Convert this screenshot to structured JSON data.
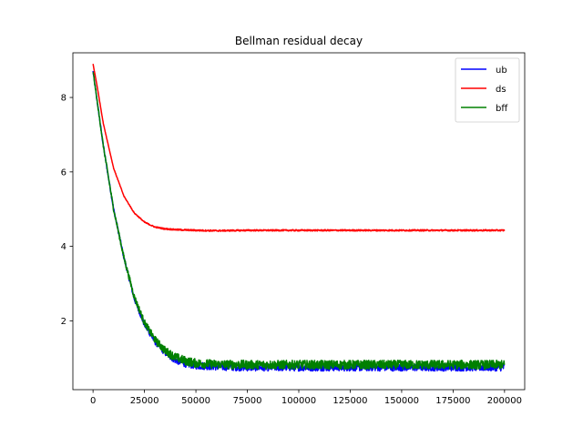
{
  "chart_data": {
    "type": "line",
    "title": "Bellman residual decay",
    "xlabel": "",
    "ylabel": "",
    "xlim": [
      -9800,
      209800
    ],
    "ylim": [
      0.15,
      9.2
    ],
    "x_ticks": [
      0,
      25000,
      50000,
      75000,
      100000,
      125000,
      150000,
      175000,
      200000
    ],
    "x_tick_labels": [
      "0",
      "25000",
      "50000",
      "75000",
      "100000",
      "125000",
      "150000",
      "175000",
      "200000"
    ],
    "y_ticks": [
      2,
      4,
      6,
      8
    ],
    "y_tick_labels": [
      "2",
      "4",
      "6",
      "8"
    ],
    "grid": false,
    "legend_position": "top-right",
    "series": [
      {
        "name": "ub",
        "color": "#0000ff",
        "noise": 0.1,
        "x": [
          0,
          2000,
          5000,
          10000,
          15000,
          20000,
          25000,
          30000,
          35000,
          40000,
          45000,
          50000,
          60000,
          75000,
          100000,
          125000,
          150000,
          175000,
          200000
        ],
        "values": [
          8.7,
          7.9,
          6.7,
          5.0,
          3.7,
          2.6,
          1.9,
          1.45,
          1.15,
          0.95,
          0.85,
          0.8,
          0.77,
          0.75,
          0.75,
          0.75,
          0.75,
          0.75,
          0.75
        ]
      },
      {
        "name": "ds",
        "color": "#ff0000",
        "noise": 0.02,
        "x": [
          0,
          2000,
          5000,
          10000,
          15000,
          20000,
          25000,
          30000,
          35000,
          40000,
          50000,
          60000,
          75000,
          100000,
          125000,
          150000,
          175000,
          200000
        ],
        "values": [
          8.9,
          8.3,
          7.3,
          6.1,
          5.35,
          4.9,
          4.65,
          4.52,
          4.47,
          4.45,
          4.43,
          4.42,
          4.43,
          4.43,
          4.43,
          4.43,
          4.43,
          4.43
        ]
      },
      {
        "name": "bff",
        "color": "#008000",
        "noise": 0.12,
        "x": [
          0,
          2000,
          5000,
          10000,
          15000,
          20000,
          25000,
          30000,
          35000,
          40000,
          45000,
          50000,
          60000,
          75000,
          100000,
          125000,
          150000,
          175000,
          200000
        ],
        "values": [
          8.7,
          7.9,
          6.7,
          5.0,
          3.7,
          2.65,
          1.95,
          1.5,
          1.2,
          1.02,
          0.92,
          0.86,
          0.83,
          0.82,
          0.82,
          0.82,
          0.82,
          0.82,
          0.82
        ]
      }
    ]
  }
}
